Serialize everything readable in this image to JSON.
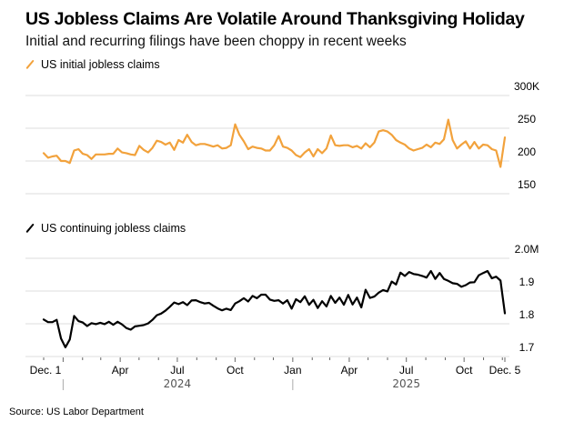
{
  "title": "US Jobless Claims Are Volatile Around Thanksgiving Holiday",
  "subtitle": "Initial and recurring filings have been choppy in recent weeks",
  "source": "Source: US Labor Department",
  "colors": {
    "initial": "#f2a23c",
    "continuing": "#000000",
    "grid": "#e3e3e3",
    "axis": "#cccccc",
    "year_label": "#555555"
  },
  "chart_data": [
    {
      "type": "line",
      "title": "US initial jobless claims",
      "legend": "US initial jobless claims",
      "legend_position": "top-left",
      "series_color": "#f2a23c",
      "unit": "thousands",
      "ylim": [
        150,
        300
      ],
      "yticks": [
        150,
        200,
        250,
        300
      ],
      "ytick_labels": [
        "150",
        "200",
        "250",
        "300K"
      ],
      "grid": true,
      "x_start": "2023-12-01",
      "x_end": "2025-12-05",
      "frequency": "weekly",
      "values": [
        212,
        205,
        207,
        208,
        200,
        200,
        197,
        216,
        218,
        211,
        209,
        203,
        210,
        210,
        210,
        211,
        211,
        219,
        213,
        212,
        210,
        209,
        223,
        217,
        213,
        220,
        231,
        229,
        225,
        228,
        217,
        232,
        228,
        240,
        229,
        224,
        226,
        226,
        224,
        222,
        224,
        219,
        220,
        224,
        256,
        240,
        230,
        218,
        222,
        220,
        219,
        216,
        216,
        224,
        238,
        222,
        220,
        216,
        209,
        206,
        213,
        218,
        207,
        218,
        212,
        219,
        239,
        224,
        223,
        224,
        224,
        221,
        223,
        219,
        227,
        221,
        228,
        245,
        247,
        245,
        240,
        232,
        228,
        225,
        219,
        216,
        218,
        220,
        225,
        221,
        228,
        226,
        233,
        263,
        232,
        219,
        225,
        230,
        219,
        229,
        219,
        225,
        224,
        218,
        216,
        191,
        236
      ],
      "xtick_labels": [
        "Dec. 1",
        "Apr",
        "Jul",
        "Oct",
        "Jan",
        "Apr",
        "Jul",
        "Oct",
        "Dec. 5"
      ],
      "year_labels": [
        "2024",
        "2025"
      ]
    },
    {
      "type": "line",
      "title": "US continuing jobless claims",
      "legend": "US continuing jobless claims",
      "legend_position": "top-left",
      "series_color": "#000000",
      "unit": "millions",
      "ylim": [
        1.7,
        2.0
      ],
      "yticks": [
        1.7,
        1.8,
        1.9,
        2.0
      ],
      "ytick_labels": [
        "1.7",
        "1.8",
        "1.9",
        "2.0M"
      ],
      "grid": true,
      "x_start": "2023-12-01",
      "x_end": "2025-12-05",
      "frequency": "weekly",
      "values": [
        1.813,
        1.805,
        1.805,
        1.812,
        1.755,
        1.728,
        1.752,
        1.824,
        1.808,
        1.804,
        1.793,
        1.802,
        1.799,
        1.803,
        1.799,
        1.806,
        1.797,
        1.806,
        1.798,
        1.787,
        1.782,
        1.792,
        1.794,
        1.796,
        1.801,
        1.812,
        1.826,
        1.831,
        1.84,
        1.852,
        1.865,
        1.86,
        1.866,
        1.857,
        1.871,
        1.872,
        1.866,
        1.862,
        1.864,
        1.855,
        1.847,
        1.841,
        1.846,
        1.842,
        1.862,
        1.869,
        1.878,
        1.868,
        1.885,
        1.878,
        1.889,
        1.889,
        1.874,
        1.87,
        1.872,
        1.862,
        1.872,
        1.846,
        1.875,
        1.866,
        1.884,
        1.858,
        1.873,
        1.848,
        1.869,
        1.853,
        1.885,
        1.864,
        1.88,
        1.858,
        1.888,
        1.859,
        1.88,
        1.85,
        1.904,
        1.879,
        1.883,
        1.895,
        1.903,
        1.899,
        1.929,
        1.92,
        1.956,
        1.946,
        1.958,
        1.952,
        1.95,
        1.946,
        1.941,
        1.961,
        1.937,
        1.955,
        1.937,
        1.931,
        1.924,
        1.922,
        1.913,
        1.918,
        1.926,
        1.927,
        1.948,
        1.955,
        1.961,
        1.939,
        1.944,
        1.932,
        1.832
      ],
      "xtick_labels": [
        "Dec. 1",
        "Apr",
        "Jul",
        "Oct",
        "Jan",
        "Apr",
        "Jul",
        "Oct",
        "Dec. 5"
      ],
      "year_labels": [
        "2024",
        "2025"
      ]
    }
  ]
}
